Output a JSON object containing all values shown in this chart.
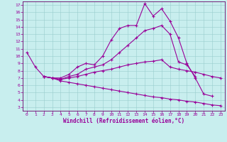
{
  "xlabel": "Windchill (Refroidissement éolien,°C)",
  "bg_color": "#c8eeee",
  "grid_color": "#99cccc",
  "line_color": "#990099",
  "spine_color": "#660066",
  "xlim": [
    -0.5,
    23.5
  ],
  "ylim": [
    2.5,
    17.5
  ],
  "yticks": [
    3,
    4,
    5,
    6,
    7,
    8,
    9,
    10,
    11,
    12,
    13,
    14,
    15,
    16,
    17
  ],
  "xticks": [
    0,
    1,
    2,
    3,
    4,
    5,
    6,
    7,
    8,
    9,
    10,
    11,
    12,
    13,
    14,
    15,
    16,
    17,
    18,
    19,
    20,
    21,
    22,
    23
  ],
  "lines": [
    {
      "x": [
        0,
        1,
        2,
        3,
        4,
        5,
        6,
        7,
        8,
        9,
        10,
        11,
        12,
        13,
        14,
        15,
        16,
        17,
        18,
        19,
        20,
        21,
        22
      ],
      "y": [
        10.5,
        8.5,
        7.2,
        7.0,
        7.0,
        7.5,
        8.5,
        9.0,
        8.8,
        10.0,
        12.2,
        13.8,
        14.2,
        14.2,
        17.2,
        15.5,
        16.5,
        14.8,
        12.5,
        9.0,
        7.0,
        4.8,
        4.5
      ]
    },
    {
      "x": [
        2,
        3,
        4,
        5,
        6,
        7,
        8,
        9,
        10,
        11,
        12,
        13,
        14,
        15,
        16,
        17,
        18,
        19,
        20
      ],
      "y": [
        7.2,
        7.0,
        6.8,
        7.2,
        7.5,
        8.2,
        8.5,
        8.8,
        9.5,
        10.5,
        11.5,
        12.5,
        13.5,
        13.8,
        14.2,
        13.0,
        9.2,
        8.8,
        7.2
      ]
    },
    {
      "x": [
        2,
        3,
        4,
        5,
        6,
        7,
        8,
        9,
        10,
        11,
        12,
        13,
        14,
        15,
        16,
        17,
        18,
        19,
        20,
        21,
        22,
        23
      ],
      "y": [
        7.2,
        7.0,
        6.8,
        7.0,
        7.2,
        7.5,
        7.8,
        8.0,
        8.2,
        8.5,
        8.8,
        9.0,
        9.2,
        9.3,
        9.5,
        8.5,
        8.2,
        8.0,
        7.8,
        7.5,
        7.2,
        7.0
      ]
    },
    {
      "x": [
        2,
        3,
        4,
        5,
        6,
        7,
        8,
        9,
        10,
        11,
        12,
        13,
        14,
        15,
        16,
        17,
        18,
        19,
        20,
        21,
        22,
        23
      ],
      "y": [
        7.2,
        7.0,
        6.6,
        6.4,
        6.2,
        6.0,
        5.8,
        5.6,
        5.4,
        5.2,
        5.0,
        4.8,
        4.6,
        4.4,
        4.3,
        4.1,
        4.0,
        3.8,
        3.7,
        3.5,
        3.3,
        3.2
      ]
    }
  ]
}
